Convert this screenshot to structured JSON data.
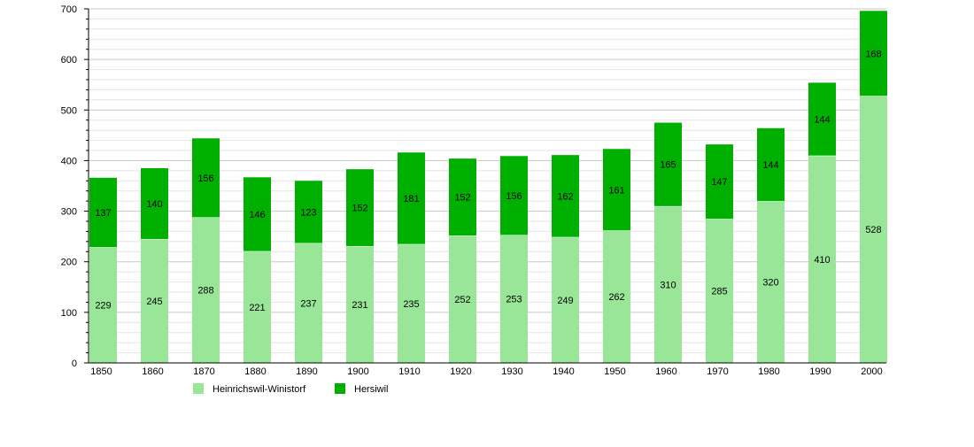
{
  "chart_data": {
    "type": "bar",
    "stacked": true,
    "categories": [
      "1850",
      "1860",
      "1870",
      "1880",
      "1890",
      "1900",
      "1910",
      "1920",
      "1930",
      "1940",
      "1950",
      "1960",
      "1970",
      "1980",
      "1990",
      "2000"
    ],
    "series": [
      {
        "name": "Heinrichswil-Winistorf",
        "color": "#99e699",
        "values": [
          229,
          245,
          288,
          221,
          237,
          231,
          235,
          252,
          253,
          249,
          262,
          310,
          285,
          320,
          410,
          528
        ]
      },
      {
        "name": "Hersiwil",
        "color": "#00b000",
        "values": [
          137,
          140,
          156,
          146,
          123,
          152,
          181,
          152,
          156,
          162,
          161,
          165,
          147,
          144,
          144,
          168
        ]
      }
    ],
    "ylim": [
      0,
      700
    ],
    "yticks": [
      "0",
      "100",
      "200",
      "300",
      "400",
      "500",
      "600",
      "700"
    ],
    "grid": true,
    "legend": "bottom",
    "title": "",
    "xlabel": "",
    "ylabel": ""
  }
}
